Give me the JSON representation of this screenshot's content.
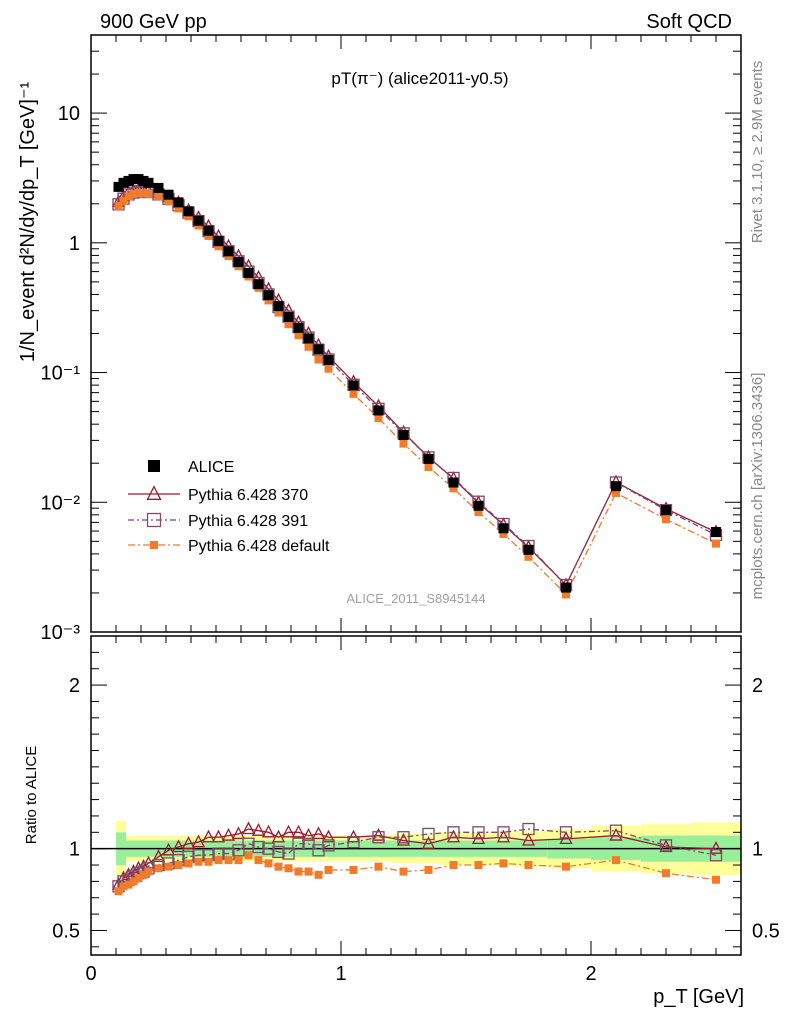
{
  "header": {
    "left": "900 GeV pp",
    "right": "Soft QCD"
  },
  "side_text": {
    "rivet": "Rivet 3.1.10, ≥ 2.9M events",
    "source": "mcplots.cern.ch [arXiv:1306.3436]"
  },
  "watermark": "ALICE_2011_S8945144",
  "chart_data": {
    "type": "scatter",
    "title": "pT(π⁻) (alice2011-y0.5)",
    "xlabel": "p_T [GeV]",
    "ylabel": "1/N_event d²N/dy/dp_T [GeV]⁻¹",
    "ratio_ylabel": "Ratio to ALICE",
    "xlim": [
      0,
      2.6
    ],
    "ylim_log": [
      0.001,
      40
    ],
    "ratio_ylim": [
      0.35,
      2.3
    ],
    "y_scale": "log",
    "x_ticks": [
      "0",
      "1",
      "2"
    ],
    "y_ticks": [
      "10⁻³",
      "10⁻²",
      "10⁻¹",
      "1",
      "10"
    ],
    "ratio_ticks": [
      "0.5",
      "1",
      "2"
    ],
    "legend": {
      "position": "middle-left",
      "entries": [
        "ALICE",
        "Pythia 6.428 370",
        "Pythia 6.428 391",
        "Pythia 6.428 default"
      ]
    },
    "x": [
      0.11,
      0.13,
      0.15,
      0.17,
      0.19,
      0.21,
      0.23,
      0.27,
      0.31,
      0.35,
      0.39,
      0.43,
      0.47,
      0.51,
      0.55,
      0.59,
      0.63,
      0.67,
      0.71,
      0.75,
      0.79,
      0.83,
      0.87,
      0.91,
      0.95,
      1.05,
      1.15,
      1.25,
      1.35,
      1.45,
      1.55,
      1.65,
      1.75,
      1.9,
      2.1,
      2.3,
      2.5
    ],
    "series": [
      {
        "name": "ALICE",
        "color": "#000000",
        "marker": "filled-square",
        "values": [
          2.7,
          2.9,
          3.0,
          3.1,
          3.1,
          3.0,
          2.9,
          2.65,
          2.35,
          2.05,
          1.75,
          1.48,
          1.24,
          1.03,
          0.86,
          0.71,
          0.585,
          0.48,
          0.395,
          0.325,
          0.268,
          0.221,
          0.183,
          0.151,
          0.125,
          0.0795,
          0.051,
          0.033,
          0.0216,
          0.0142,
          0.0094,
          0.0063,
          0.0043,
          0.0022,
          0.0133,
          0.0087,
          0.0059
        ],
        "band_inner": [
          0.1,
          0.1,
          0.05,
          0.05,
          0.05,
          0.05,
          0.05,
          0.05,
          0.05,
          0.05,
          0.05,
          0.05,
          0.05,
          0.05,
          0.05,
          0.05,
          0.05,
          0.05,
          0.05,
          0.05,
          0.05,
          0.05,
          0.05,
          0.05,
          0.05,
          0.05,
          0.05,
          0.05,
          0.05,
          0.05,
          0.05,
          0.05,
          0.05,
          0.06,
          0.07,
          0.08,
          0.08
        ],
        "band_outer": [
          0.17,
          0.17,
          0.08,
          0.08,
          0.08,
          0.08,
          0.08,
          0.08,
          0.08,
          0.08,
          0.08,
          0.08,
          0.08,
          0.08,
          0.08,
          0.08,
          0.08,
          0.08,
          0.08,
          0.08,
          0.08,
          0.08,
          0.08,
          0.08,
          0.08,
          0.08,
          0.08,
          0.09,
          0.09,
          0.1,
          0.1,
          0.1,
          0.11,
          0.12,
          0.14,
          0.15,
          0.16
        ]
      },
      {
        "name": "Pythia 6.428 370",
        "color": "#9b1b30",
        "marker": "open-triangle",
        "values": [
          2.07,
          2.28,
          2.45,
          2.52,
          2.56,
          2.55,
          2.52,
          2.42,
          2.25,
          2.04,
          1.78,
          1.56,
          1.34,
          1.12,
          0.94,
          0.79,
          0.66,
          0.54,
          0.44,
          0.36,
          0.3,
          0.243,
          0.2,
          0.162,
          0.133,
          0.0845,
          0.055,
          0.0345,
          0.0222,
          0.0152,
          0.0099,
          0.0067,
          0.0045,
          0.0023,
          0.0143,
          0.0089,
          0.0059
        ],
        "ratio": [
          0.78,
          0.82,
          0.84,
          0.86,
          0.88,
          0.89,
          0.91,
          0.95,
          0.99,
          1.01,
          1.03,
          1.04,
          1.07,
          1.07,
          1.08,
          1.09,
          1.12,
          1.11,
          1.1,
          1.07,
          1.1,
          1.1,
          1.08,
          1.09,
          1.07,
          1.07,
          1.08,
          1.05,
          1.03,
          1.07,
          1.06,
          1.07,
          1.05,
          1.06,
          1.08,
          1.01,
          1.0
        ]
      },
      {
        "name": "Pythia 6.428 391",
        "color": "#7a4b6b",
        "marker": "open-square",
        "values": [
          1.98,
          2.19,
          2.36,
          2.44,
          2.5,
          2.48,
          2.46,
          2.36,
          2.18,
          1.95,
          1.71,
          1.47,
          1.23,
          1.02,
          0.86,
          0.72,
          0.6,
          0.49,
          0.4,
          0.32,
          0.27,
          0.224,
          0.186,
          0.15,
          0.126,
          0.0805,
          0.0525,
          0.034,
          0.0222,
          0.0154,
          0.0101,
          0.0068,
          0.0046,
          0.0023,
          0.0142,
          0.0087,
          0.0056
        ],
        "ratio": [
          0.77,
          0.8,
          0.81,
          0.83,
          0.85,
          0.86,
          0.88,
          0.9,
          0.91,
          0.93,
          0.95,
          0.96,
          0.96,
          0.97,
          0.97,
          0.99,
          1.03,
          1.01,
          1.0,
          0.98,
          0.97,
          1.03,
          1.03,
          0.99,
          1.02,
          1.04,
          1.07,
          1.07,
          1.09,
          1.1,
          1.1,
          1.1,
          1.12,
          1.1,
          1.11,
          1.02,
          0.96
        ]
      },
      {
        "name": "Pythia 6.428 default",
        "color": "#f07b2b",
        "marker": "filled-square",
        "values": [
          1.92,
          2.1,
          2.28,
          2.38,
          2.42,
          2.41,
          2.38,
          2.28,
          2.09,
          1.84,
          1.6,
          1.36,
          1.13,
          0.94,
          0.79,
          0.66,
          0.55,
          0.45,
          0.36,
          0.29,
          0.236,
          0.194,
          0.158,
          0.126,
          0.107,
          0.0685,
          0.0445,
          0.0283,
          0.0187,
          0.0128,
          0.0084,
          0.0057,
          0.0038,
          0.00195,
          0.0118,
          0.0074,
          0.0048
        ],
        "ratio": [
          0.74,
          0.77,
          0.78,
          0.8,
          0.82,
          0.84,
          0.86,
          0.88,
          0.89,
          0.9,
          0.91,
          0.92,
          0.92,
          0.93,
          0.93,
          0.93,
          0.96,
          0.93,
          0.91,
          0.89,
          0.88,
          0.86,
          0.86,
          0.84,
          0.87,
          0.87,
          0.89,
          0.86,
          0.87,
          0.9,
          0.9,
          0.91,
          0.9,
          0.89,
          0.93,
          0.85,
          0.81
        ]
      }
    ]
  }
}
